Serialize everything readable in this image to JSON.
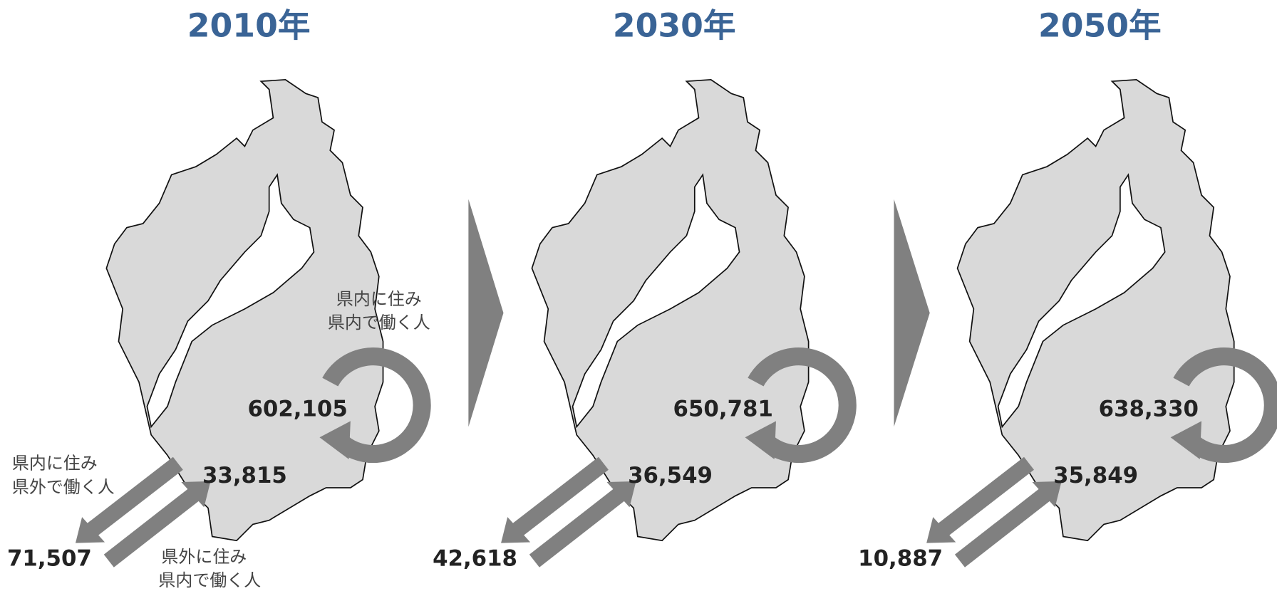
{
  "panels": [
    {
      "year": "2010年",
      "inner": "602,105",
      "inflow": "33,815",
      "outflow": "71,507"
    },
    {
      "year": "2030年",
      "inner": "650,781",
      "inflow": "36,549",
      "outflow": "42,618"
    },
    {
      "year": "2050年",
      "inner": "638,330",
      "inflow": "35,849",
      "outflow": "10,887"
    }
  ],
  "labels": {
    "inner": [
      "県内に住み",
      "県内で働く人"
    ],
    "outflow": [
      "県内に住み",
      "県外で働く人"
    ],
    "inflow": [
      "県外に住み",
      "県内で働く人"
    ]
  }
}
